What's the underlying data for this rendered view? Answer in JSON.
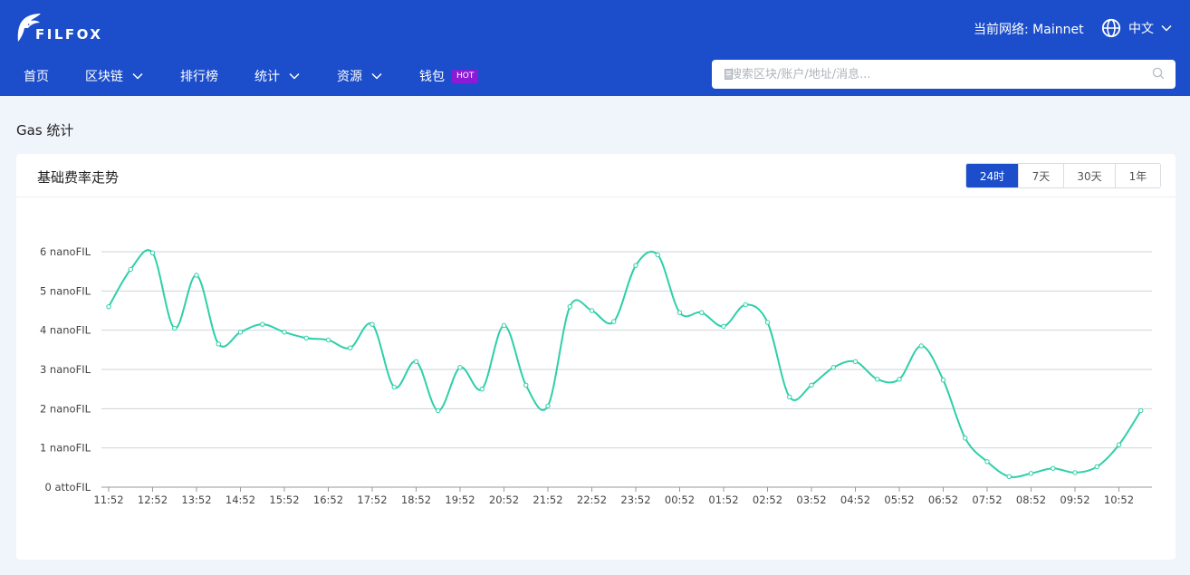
{
  "header": {
    "logo_text": "FILFOX",
    "network": "当前网络: Mainnet",
    "language": "中文",
    "nav": [
      {
        "label": "首页",
        "has_dropdown": false
      },
      {
        "label": "区块链",
        "has_dropdown": true
      },
      {
        "label": "排行榜",
        "has_dropdown": false
      },
      {
        "label": "统计",
        "has_dropdown": true
      },
      {
        "label": "资源",
        "has_dropdown": true
      },
      {
        "label": "钱包",
        "has_dropdown": false,
        "badge": "HOT"
      }
    ],
    "search_placeholder": "搜索区块/账户/地址/消息...",
    "colors": {
      "header_bg": "#1c4ecb",
      "badge_bg": "#8b1bd6"
    }
  },
  "page": {
    "title": "Gas 统计",
    "card_title": "基础费率走势",
    "ranges": [
      "24时",
      "7天",
      "30天",
      "1年"
    ],
    "active_range": "24时"
  },
  "chart_data": {
    "type": "line",
    "title": "基础费率走势",
    "xlabel": "",
    "ylabel": "",
    "line_color": "#2ecfa9",
    "y_unit_note": "nanoFIL",
    "ylim": [
      0,
      6
    ],
    "y_ticks": [
      {
        "value": 0,
        "label": "0 attoFIL"
      },
      {
        "value": 1,
        "label": "1 nanoFIL"
      },
      {
        "value": 2,
        "label": "2 nanoFIL"
      },
      {
        "value": 3,
        "label": "3 nanoFIL"
      },
      {
        "value": 4,
        "label": "4 nanoFIL"
      },
      {
        "value": 5,
        "label": "5 nanoFIL"
      },
      {
        "value": 6,
        "label": "6 nanoFIL"
      }
    ],
    "x_ticks": [
      "11:52",
      "12:52",
      "13:52",
      "14:52",
      "15:52",
      "16:52",
      "17:52",
      "18:52",
      "19:52",
      "20:52",
      "21:52",
      "22:52",
      "23:52",
      "00:52",
      "01:52",
      "02:52",
      "03:52",
      "04:52",
      "05:52",
      "06:52",
      "07:52",
      "08:52",
      "09:52",
      "10:52"
    ],
    "x": [
      0,
      0.5,
      1,
      1.5,
      2,
      2.5,
      3,
      3.5,
      4,
      4.5,
      5,
      5.5,
      6,
      6.5,
      7,
      7.5,
      8,
      8.5,
      9,
      9.5,
      10,
      10.5,
      11,
      11.5,
      12,
      12.5,
      13,
      13.5,
      14,
      14.5,
      15,
      15.5,
      16,
      16.5,
      17,
      17.5,
      18,
      18.5,
      19,
      19.5,
      20,
      20.5,
      21,
      21.5,
      22,
      22.5,
      23,
      23.5
    ],
    "values": [
      4.6,
      5.55,
      5.97,
      4.05,
      5.4,
      3.65,
      3.95,
      4.15,
      3.95,
      3.8,
      3.75,
      3.55,
      4.15,
      2.55,
      3.2,
      1.95,
      3.05,
      2.5,
      4.12,
      2.6,
      2.07,
      4.6,
      4.5,
      4.22,
      5.65,
      5.92,
      4.45,
      4.45,
      4.1,
      4.65,
      4.2,
      2.3,
      2.6,
      3.05,
      3.2,
      2.75,
      2.75,
      3.6,
      2.73,
      1.25,
      0.65,
      0.27,
      0.35,
      0.48,
      0.37,
      0.52,
      1.08,
      1.95
    ]
  }
}
